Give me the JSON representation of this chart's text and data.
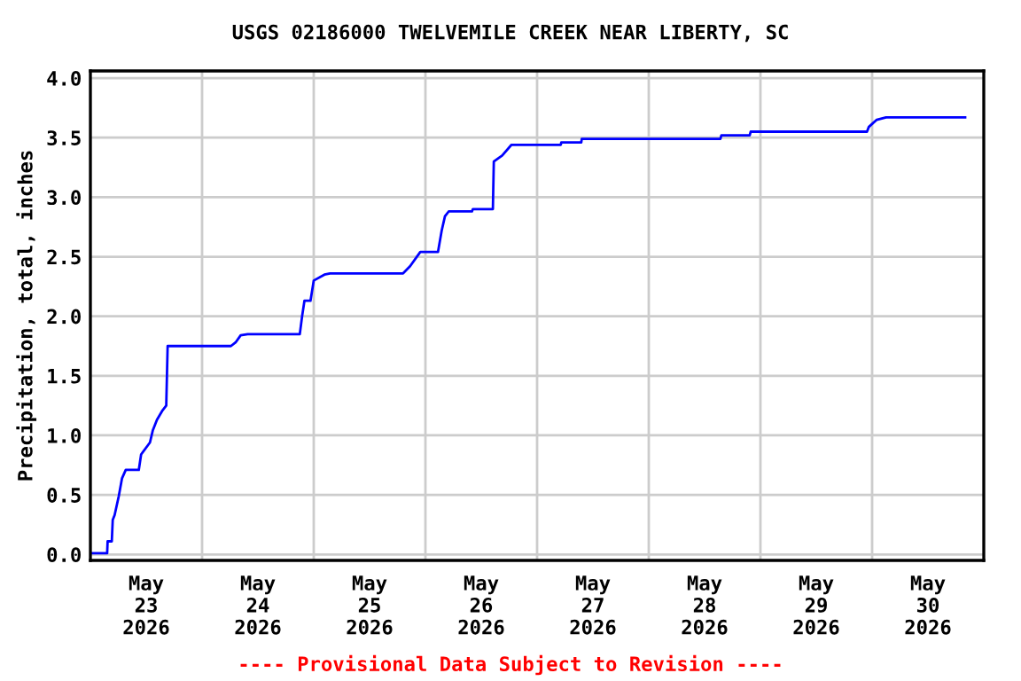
{
  "chart_data": {
    "type": "line",
    "title": "USGS 02186000 TWELVEMILE CREEK NEAR LIBERTY, SC",
    "ylabel": "Precipitation, total, inches",
    "annotations": [
      "---- Provisional Data Subject to Revision ----"
    ],
    "x": [
      "2026-05-23T00:00",
      "2026-05-23T03:36",
      "2026-05-23T03:42",
      "2026-05-23T04:36",
      "2026-05-23T04:48",
      "2026-05-23T05:12",
      "2026-05-23T06:06",
      "2026-05-23T06:48",
      "2026-05-23T07:36",
      "2026-05-23T10:24",
      "2026-05-23T10:54",
      "2026-05-23T12:48",
      "2026-05-23T13:24",
      "2026-05-23T14:18",
      "2026-05-23T15:30",
      "2026-05-23T16:18",
      "2026-05-23T16:36",
      "2026-05-24T06:12",
      "2026-05-24T07:12",
      "2026-05-24T08:18",
      "2026-05-24T09:48",
      "2026-05-24T21:00",
      "2026-05-24T21:30",
      "2026-05-24T22:00",
      "2026-05-24T23:18",
      "2026-05-25T00:00",
      "2026-05-25T02:18",
      "2026-05-25T03:30",
      "2026-05-25T19:12",
      "2026-05-25T20:42",
      "2026-05-25T22:54",
      "2026-05-26T02:42",
      "2026-05-26T03:30",
      "2026-05-26T04:12",
      "2026-05-26T05:00",
      "2026-05-26T10:00",
      "2026-05-26T10:12",
      "2026-05-26T14:30",
      "2026-05-26T14:42",
      "2026-05-26T16:30",
      "2026-05-26T18:30",
      "2026-05-27T05:06",
      "2026-05-27T05:12",
      "2026-05-27T09:30",
      "2026-05-27T09:36",
      "2026-05-28T15:24",
      "2026-05-28T15:36",
      "2026-05-28T21:42",
      "2026-05-28T21:54",
      "2026-05-29T22:54",
      "2026-05-29T23:18",
      "2026-05-30T01:00",
      "2026-05-30T03:00",
      "2026-05-30T20:00"
    ],
    "series": [
      {
        "color": "#0000ff",
        "values": [
          0.01,
          0.01,
          0.11,
          0.11,
          0.29,
          0.33,
          0.49,
          0.64,
          0.71,
          0.71,
          0.84,
          0.94,
          1.04,
          1.13,
          1.21,
          1.25,
          1.75,
          1.75,
          1.78,
          1.84,
          1.85,
          1.85,
          2.0,
          2.13,
          2.13,
          2.3,
          2.35,
          2.36,
          2.36,
          2.42,
          2.54,
          2.54,
          2.72,
          2.84,
          2.88,
          2.88,
          2.9,
          2.9,
          3.3,
          3.35,
          3.44,
          3.44,
          3.46,
          3.46,
          3.49,
          3.49,
          3.52,
          3.52,
          3.55,
          3.55,
          3.59,
          3.65,
          3.67,
          3.67
        ]
      }
    ],
    "xlim": [
      "2026-05-23T00:00",
      "2026-05-31T00:00"
    ],
    "xticks": [
      {
        "value": "2026-05-23T12:00",
        "label": "May\n23\n2026"
      },
      {
        "value": "2026-05-24T12:00",
        "label": "May\n24\n2026"
      },
      {
        "value": "2026-05-25T12:00",
        "label": "May\n25\n2026"
      },
      {
        "value": "2026-05-26T12:00",
        "label": "May\n26\n2026"
      },
      {
        "value": "2026-05-27T12:00",
        "label": "May\n27\n2026"
      },
      {
        "value": "2026-05-28T12:00",
        "label": "May\n28\n2026"
      },
      {
        "value": "2026-05-29T12:00",
        "label": "May\n29\n2026"
      },
      {
        "value": "2026-05-30T12:00",
        "label": "May\n30\n2026"
      },
      {
        "value": "2026-05-24T00:00",
        "label": null
      },
      {
        "value": "2026-05-25T00:00",
        "label": null
      },
      {
        "value": "2026-05-26T00:00",
        "label": null
      },
      {
        "value": "2026-05-27T00:00",
        "label": null
      },
      {
        "value": "2026-05-28T00:00",
        "label": null
      },
      {
        "value": "2026-05-29T00:00",
        "label": null
      },
      {
        "value": "2026-05-30T00:00",
        "label": null
      }
    ],
    "ylim": [
      -0.05,
      4.06
    ],
    "yticks": [
      {
        "value": 0,
        "label": "0.0"
      },
      {
        "value": 0.5,
        "label": "0.5"
      },
      {
        "value": 1,
        "label": "1.0"
      },
      {
        "value": 1.5,
        "label": "1.5"
      },
      {
        "value": 2,
        "label": "2.0"
      },
      {
        "value": 2.5,
        "label": "2.5"
      },
      {
        "value": 3,
        "label": "3.0"
      },
      {
        "value": 3.5,
        "label": "3.5"
      },
      {
        "value": 4,
        "label": "4.0"
      }
    ],
    "grid": true,
    "legend": false,
    "marker": "none",
    "line_style": "solid"
  }
}
